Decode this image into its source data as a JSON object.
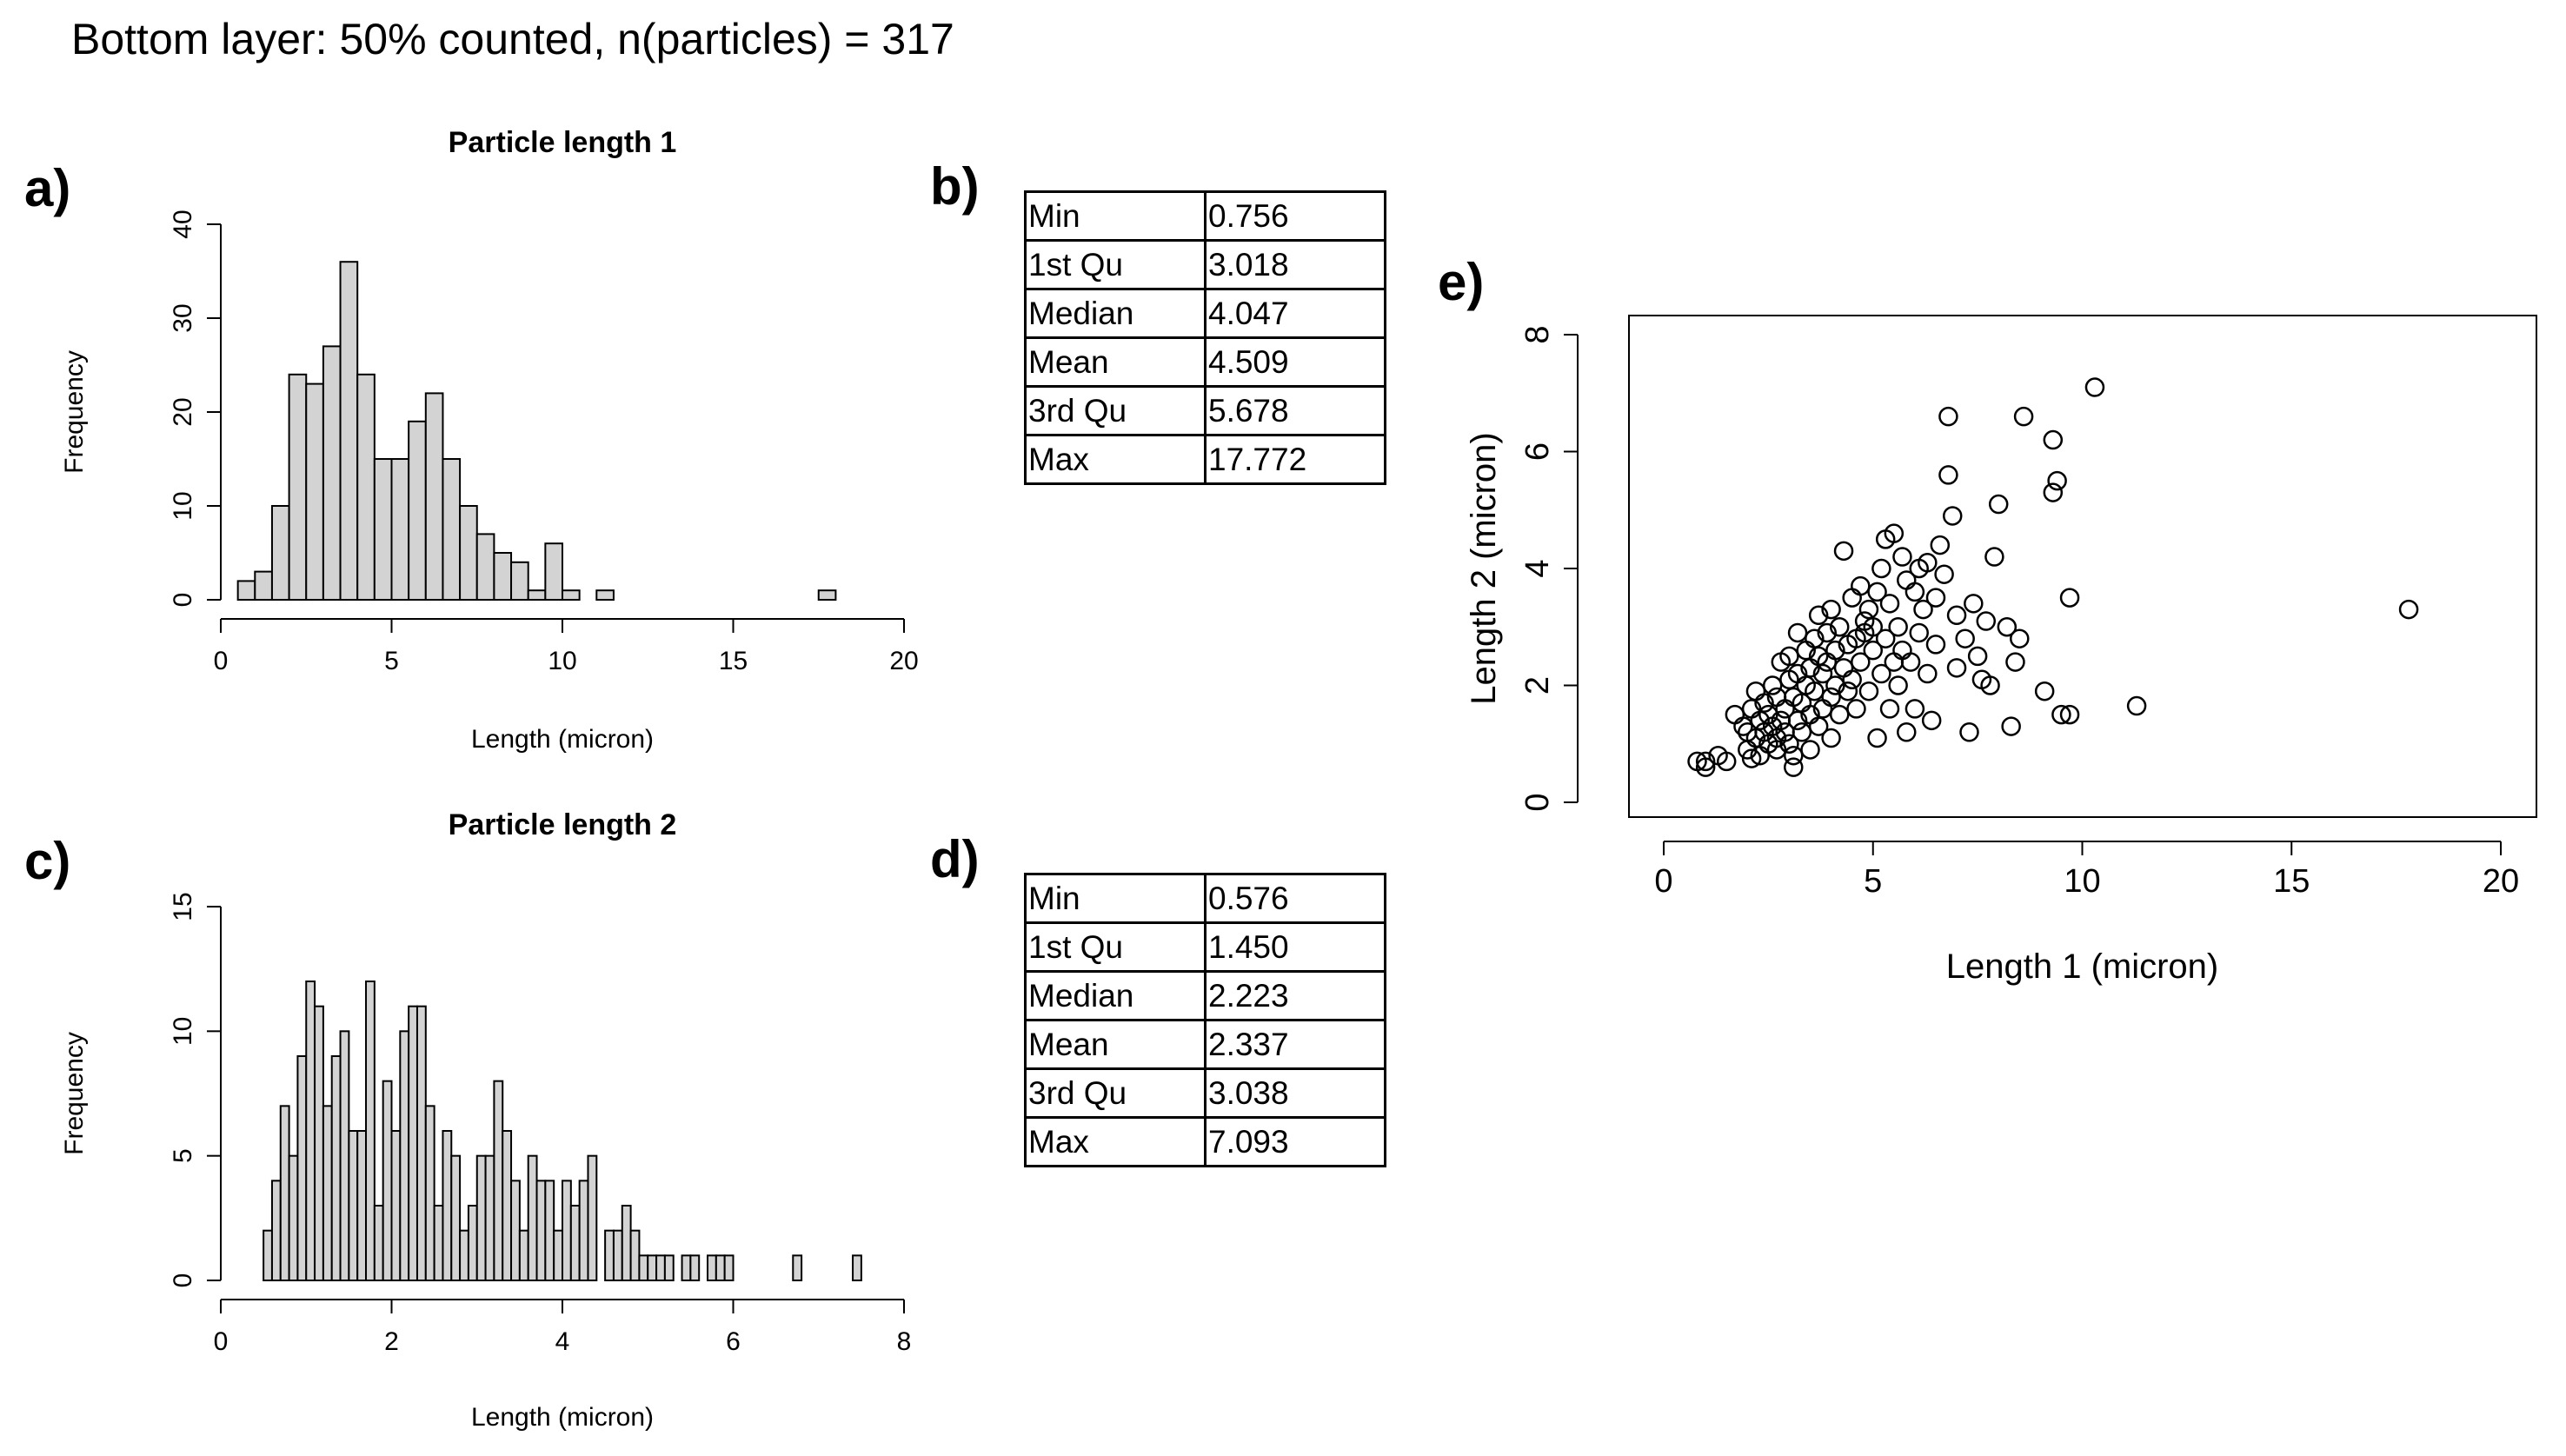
{
  "header": {
    "title": "Bottom layer: 50% counted, n(particles) = 317"
  },
  "panel_labels": {
    "a": "a)",
    "b": "b)",
    "c": "c)",
    "d": "d)",
    "e": "e)"
  },
  "stats_b": [
    {
      "label": "Min",
      "value": "0.756"
    },
    {
      "label": "1st Qu",
      "value": "3.018"
    },
    {
      "label": "Median",
      "value": "4.047"
    },
    {
      "label": "Mean",
      "value": "4.509"
    },
    {
      "label": "3rd Qu",
      "value": "5.678"
    },
    {
      "label": "Max",
      "value": "17.772"
    }
  ],
  "stats_d": [
    {
      "label": "Min",
      "value": "0.576"
    },
    {
      "label": "1st Qu",
      "value": "1.450"
    },
    {
      "label": "Median",
      "value": "2.223"
    },
    {
      "label": "Mean",
      "value": "2.337"
    },
    {
      "label": "3rd Qu",
      "value": "3.038"
    },
    {
      "label": "Max",
      "value": "7.093"
    }
  ],
  "chart_data": [
    {
      "id": "hist1",
      "type": "bar",
      "title": "Particle length 1",
      "xlabel": "Length (micron)",
      "ylabel": "Frequency",
      "xlim": [
        0,
        20
      ],
      "ylim": [
        0,
        40
      ],
      "xticks": [
        0,
        5,
        10,
        15,
        20
      ],
      "yticks": [
        0,
        10,
        20,
        30,
        40
      ],
      "bin_width": 0.5,
      "bin_start": 0.5,
      "values": [
        2,
        3,
        10,
        24,
        23,
        27,
        36,
        24,
        15,
        15,
        19,
        22,
        15,
        10,
        7,
        5,
        4,
        1,
        6,
        1,
        0,
        1,
        0,
        0,
        0,
        0,
        0,
        0,
        0,
        0,
        0,
        0,
        0,
        0,
        1
      ]
    },
    {
      "id": "hist2",
      "type": "bar",
      "title": "Particle length 2",
      "xlabel": "Length (micron)",
      "ylabel": "Frequency",
      "xlim": [
        0,
        8
      ],
      "ylim": [
        0,
        15
      ],
      "xticks": [
        0,
        2,
        4,
        6,
        8
      ],
      "yticks": [
        0,
        5,
        10,
        15
      ],
      "bin_width": 0.1,
      "bin_start": 0.5,
      "values": [
        2,
        4,
        7,
        5,
        9,
        12,
        11,
        7,
        9,
        10,
        6,
        6,
        12,
        3,
        8,
        6,
        10,
        11,
        11,
        7,
        3,
        6,
        5,
        2,
        3,
        5,
        5,
        8,
        6,
        4,
        2,
        5,
        4,
        4,
        2,
        4,
        3,
        4,
        5,
        0,
        2,
        2,
        3,
        2,
        1,
        1,
        1,
        1,
        0,
        1,
        1,
        0,
        1,
        1,
        1,
        0,
        0,
        0,
        0,
        0,
        0,
        0,
        1,
        0,
        0,
        0,
        0,
        0,
        0,
        1
      ]
    },
    {
      "id": "scatter",
      "type": "scatter",
      "title": "",
      "xlabel": "Length 1 (micron)",
      "ylabel": "Length 2 (micron)",
      "xlim": [
        0,
        20
      ],
      "ylim": [
        0,
        8
      ],
      "xticks": [
        0,
        5,
        10,
        15,
        20
      ],
      "yticks": [
        0,
        2,
        4,
        6,
        8
      ],
      "points": [
        [
          0.8,
          0.7
        ],
        [
          1.0,
          0.6
        ],
        [
          1.0,
          0.7
        ],
        [
          1.3,
          0.8
        ],
        [
          1.5,
          0.7
        ],
        [
          1.7,
          1.5
        ],
        [
          1.9,
          1.3
        ],
        [
          2.0,
          0.9
        ],
        [
          2.0,
          1.2
        ],
        [
          2.1,
          0.75
        ],
        [
          2.1,
          1.6
        ],
        [
          2.2,
          1.9
        ],
        [
          2.2,
          1.1
        ],
        [
          2.3,
          1.4
        ],
        [
          2.3,
          0.8
        ],
        [
          2.4,
          1.2
        ],
        [
          2.4,
          1.7
        ],
        [
          2.5,
          1.0
        ],
        [
          2.5,
          1.5
        ],
        [
          2.6,
          1.3
        ],
        [
          2.6,
          2.0
        ],
        [
          2.7,
          1.1
        ],
        [
          2.7,
          0.9
        ],
        [
          2.7,
          1.8
        ],
        [
          2.8,
          1.4
        ],
        [
          2.8,
          2.4
        ],
        [
          2.9,
          1.6
        ],
        [
          2.9,
          1.2
        ],
        [
          3.0,
          2.1
        ],
        [
          3.0,
          1.0
        ],
        [
          3.0,
          2.5
        ],
        [
          3.1,
          1.8
        ],
        [
          3.1,
          0.8
        ],
        [
          3.1,
          0.6
        ],
        [
          3.2,
          1.4
        ],
        [
          3.2,
          2.2
        ],
        [
          3.2,
          2.9
        ],
        [
          3.3,
          1.7
        ],
        [
          3.3,
          1.2
        ],
        [
          3.4,
          2.0
        ],
        [
          3.4,
          2.6
        ],
        [
          3.5,
          1.5
        ],
        [
          3.5,
          2.3
        ],
        [
          3.5,
          0.9
        ],
        [
          3.6,
          2.8
        ],
        [
          3.6,
          1.9
        ],
        [
          3.7,
          1.3
        ],
        [
          3.7,
          2.5
        ],
        [
          3.7,
          3.2
        ],
        [
          3.8,
          2.2
        ],
        [
          3.8,
          1.6
        ],
        [
          3.9,
          2.9
        ],
        [
          3.9,
          2.4
        ],
        [
          4.0,
          1.8
        ],
        [
          4.0,
          3.3
        ],
        [
          4.0,
          1.1
        ],
        [
          4.1,
          2.6
        ],
        [
          4.1,
          2.0
        ],
        [
          4.2,
          3.0
        ],
        [
          4.2,
          1.5
        ],
        [
          4.3,
          2.3
        ],
        [
          4.3,
          4.3
        ],
        [
          4.4,
          2.7
        ],
        [
          4.4,
          1.9
        ],
        [
          4.5,
          3.5
        ],
        [
          4.5,
          2.1
        ],
        [
          4.6,
          1.6
        ],
        [
          4.6,
          2.8
        ],
        [
          4.7,
          3.7
        ],
        [
          4.7,
          2.4
        ],
        [
          4.8,
          3.1
        ],
        [
          4.8,
          2.9
        ],
        [
          4.9,
          1.9
        ],
        [
          4.9,
          3.3
        ],
        [
          5.0,
          2.6
        ],
        [
          5.0,
          3.0
        ],
        [
          5.1,
          1.1
        ],
        [
          5.1,
          3.6
        ],
        [
          5.2,
          2.2
        ],
        [
          5.2,
          4.0
        ],
        [
          5.3,
          2.8
        ],
        [
          5.3,
          4.5
        ],
        [
          5.4,
          1.6
        ],
        [
          5.4,
          3.4
        ],
        [
          5.5,
          2.4
        ],
        [
          5.5,
          4.6
        ],
        [
          5.6,
          3.0
        ],
        [
          5.6,
          2.0
        ],
        [
          5.7,
          4.2
        ],
        [
          5.7,
          2.6
        ],
        [
          5.8,
          3.8
        ],
        [
          5.8,
          1.2
        ],
        [
          5.9,
          2.4
        ],
        [
          6.0,
          3.6
        ],
        [
          6.0,
          1.6
        ],
        [
          6.1,
          4.0
        ],
        [
          6.1,
          2.9
        ],
        [
          6.2,
          3.3
        ],
        [
          6.3,
          2.2
        ],
        [
          6.3,
          4.1
        ],
        [
          6.4,
          1.4
        ],
        [
          6.5,
          3.5
        ],
        [
          6.5,
          2.7
        ],
        [
          6.6,
          4.4
        ],
        [
          6.7,
          3.9
        ],
        [
          6.8,
          5.6
        ],
        [
          6.8,
          6.6
        ],
        [
          6.9,
          4.9
        ],
        [
          7.0,
          3.2
        ],
        [
          7.0,
          2.3
        ],
        [
          7.2,
          2.8
        ],
        [
          7.3,
          1.2
        ],
        [
          7.4,
          3.4
        ],
        [
          7.5,
          2.5
        ],
        [
          7.6,
          2.1
        ],
        [
          7.7,
          3.1
        ],
        [
          7.8,
          2.0
        ],
        [
          7.9,
          4.2
        ],
        [
          8.0,
          5.1
        ],
        [
          8.2,
          3.0
        ],
        [
          8.3,
          1.3
        ],
        [
          8.4,
          2.4
        ],
        [
          8.5,
          2.8
        ],
        [
          8.6,
          6.6
        ],
        [
          9.1,
          1.9
        ],
        [
          9.3,
          5.3
        ],
        [
          9.3,
          6.2
        ],
        [
          9.4,
          5.5
        ],
        [
          9.5,
          1.5
        ],
        [
          9.7,
          1.5
        ],
        [
          9.7,
          3.5
        ],
        [
          10.3,
          7.1
        ],
        [
          11.3,
          1.65
        ],
        [
          17.8,
          3.3
        ]
      ]
    }
  ]
}
